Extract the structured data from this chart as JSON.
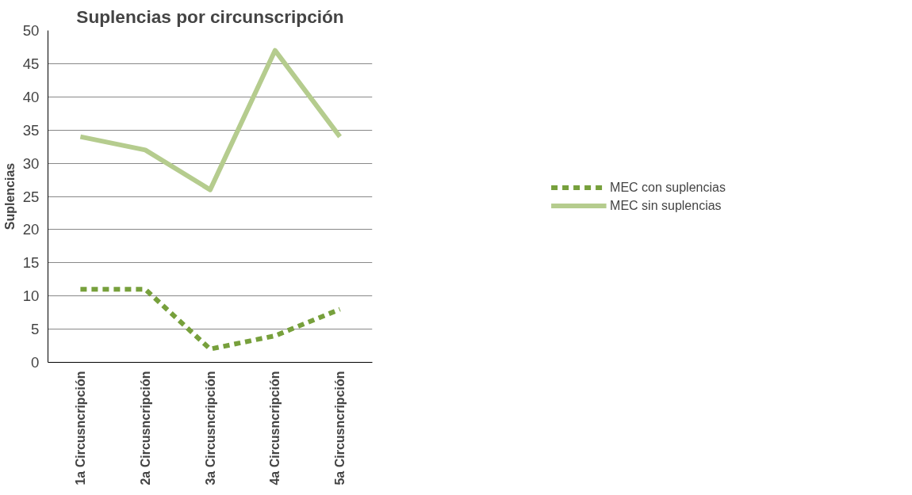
{
  "chart_data": {
    "type": "line",
    "title": "Suplencias por circunscripción",
    "ylabel": "Suplencias",
    "categories": [
      "1a Circusncripción",
      "2a Circusncripción",
      "3a Circusncripción",
      "4a Circusncripción",
      "5a Circusncripción"
    ],
    "series": [
      {
        "name": "MEC con suplencias",
        "color": "#77a03c",
        "line_style": "dashed",
        "values": [
          11,
          11,
          2,
          4,
          8
        ]
      },
      {
        "name": "MEC sin suplencias",
        "color": "#b5cc8e",
        "line_style": "solid",
        "values": [
          34,
          32,
          26,
          47,
          34
        ]
      }
    ],
    "ylim": [
      0,
      50
    ],
    "yticks": [
      0,
      5,
      10,
      15,
      20,
      25,
      30,
      35,
      40,
      45,
      50
    ],
    "grid": "y",
    "legend": "right",
    "marker": "none"
  }
}
